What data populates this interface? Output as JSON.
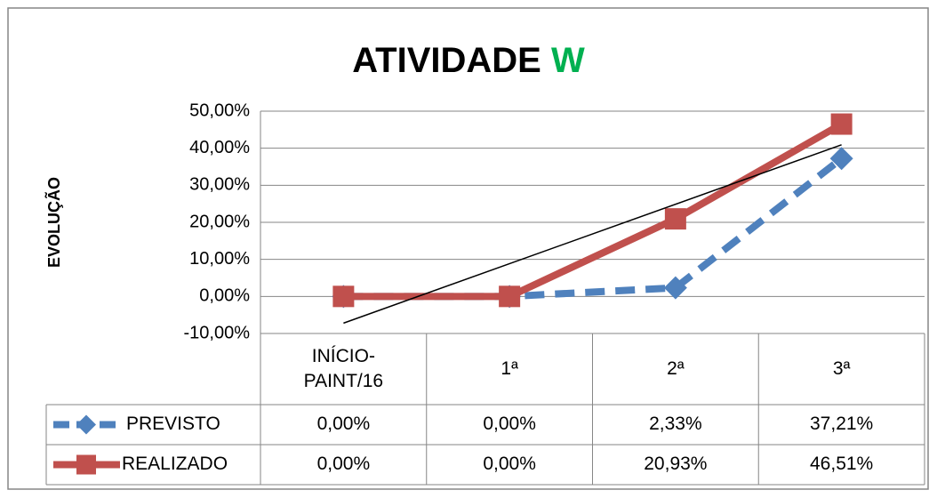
{
  "chart_data": {
    "type": "line",
    "title_parts": [
      {
        "text": "ATIVIDADE",
        "color": "#000000"
      },
      {
        "text": "W",
        "color": "#00b050"
      }
    ],
    "ylabel": "EVOLUÇÃO",
    "categories": [
      "INÍCIO-PAINT/16",
      "1ª",
      "2ª",
      "3ª"
    ],
    "series": [
      {
        "name": "PREVISTO",
        "color": "#4f81bd",
        "dashed": true,
        "marker": "diamond",
        "values": [
          0,
          0,
          2.33,
          37.21
        ],
        "value_labels": [
          "0,00%",
          "0,00%",
          "2,33%",
          "37,21%"
        ]
      },
      {
        "name": "REALIZADO",
        "color": "#c0504d",
        "dashed": false,
        "marker": "square",
        "trendline": "linear",
        "values": [
          0,
          0,
          20.93,
          46.51
        ],
        "value_labels": [
          "0,00%",
          "0,00%",
          "20,93%",
          "46,51%"
        ]
      }
    ],
    "ylim": [
      -10,
      50
    ],
    "yticks": [
      {
        "value": -10,
        "label": "-10,00%"
      },
      {
        "value": 0,
        "label": "0,00%"
      },
      {
        "value": 10,
        "label": "10,00%"
      },
      {
        "value": 20,
        "label": "20,00%"
      },
      {
        "value": 30,
        "label": "30,00%"
      },
      {
        "value": 40,
        "label": "40,00%"
      },
      {
        "value": 50,
        "label": "50,00%"
      }
    ],
    "grid": true,
    "data_table": true
  }
}
